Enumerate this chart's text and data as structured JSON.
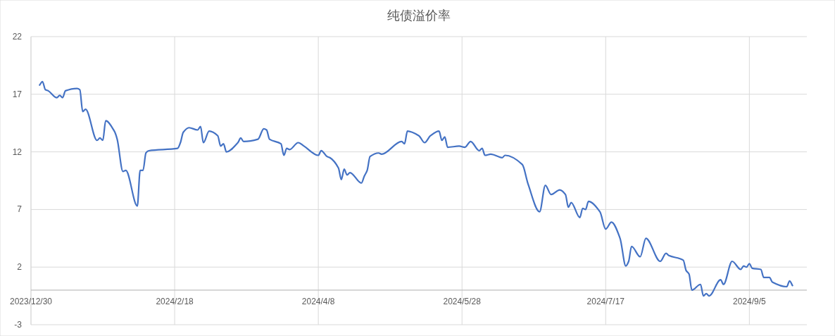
{
  "chart_data": {
    "type": "line",
    "title": "纯债溢价率",
    "xlim": [
      "2023-12-30",
      "2024-09-25"
    ],
    "xticks": [
      {
        "value": "2023-12-30",
        "label": "2023/12/30"
      },
      {
        "value": "2024-02-18",
        "label": "2024/2/18"
      },
      {
        "value": "2024-04-08",
        "label": "2024/4/8"
      },
      {
        "value": "2024-05-28",
        "label": "2024/5/28"
      },
      {
        "value": "2024-07-17",
        "label": "2024/7/17"
      },
      {
        "value": "2024-09-05",
        "label": "2024/9/5"
      }
    ],
    "ylim": [
      -3,
      22
    ],
    "yticks": [
      -3,
      2,
      7,
      12,
      17,
      22
    ],
    "grid": true,
    "series": [
      {
        "color": "#4472c4",
        "x": [
          "2024-01-02",
          "2024-01-03",
          "2024-01-04",
          "2024-01-05",
          "2024-01-08",
          "2024-01-09",
          "2024-01-10",
          "2024-01-11",
          "2024-01-15",
          "2024-01-16",
          "2024-01-17",
          "2024-01-18",
          "2024-01-22",
          "2024-01-23",
          "2024-01-24",
          "2024-01-25",
          "2024-01-28",
          "2024-01-29",
          "2024-01-31",
          "2024-02-01",
          "2024-02-05",
          "2024-02-06",
          "2024-02-07",
          "2024-02-08",
          "2024-02-09",
          "2024-02-19",
          "2024-02-20",
          "2024-02-21",
          "2024-02-23",
          "2024-02-26",
          "2024-02-27",
          "2024-02-28",
          "2024-03-01",
          "2024-03-04",
          "2024-03-05",
          "2024-03-06",
          "2024-03-07",
          "2024-03-11",
          "2024-03-12",
          "2024-03-13",
          "2024-03-18",
          "2024-03-20",
          "2024-03-21",
          "2024-03-22",
          "2024-03-26",
          "2024-03-27",
          "2024-03-28",
          "2024-03-29",
          "2024-04-01",
          "2024-04-03",
          "2024-04-08",
          "2024-04-09",
          "2024-04-11",
          "2024-04-12",
          "2024-04-15",
          "2024-04-16",
          "2024-04-17",
          "2024-04-18",
          "2024-04-19",
          "2024-04-23",
          "2024-04-24",
          "2024-04-25",
          "2024-04-26",
          "2024-04-29",
          "2024-04-30",
          "2024-05-07",
          "2024-05-08",
          "2024-05-09",
          "2024-05-13",
          "2024-05-15",
          "2024-05-17",
          "2024-05-20",
          "2024-05-21",
          "2024-05-22",
          "2024-05-23",
          "2024-05-27",
          "2024-05-29",
          "2024-05-31",
          "2024-06-03",
          "2024-06-04",
          "2024-06-05",
          "2024-06-07",
          "2024-06-11",
          "2024-06-12",
          "2024-06-18",
          "2024-06-20",
          "2024-06-24",
          "2024-06-26",
          "2024-06-28",
          "2024-07-01",
          "2024-07-03",
          "2024-07-04",
          "2024-07-05",
          "2024-07-08",
          "2024-07-09",
          "2024-07-10",
          "2024-07-11",
          "2024-07-15",
          "2024-07-17",
          "2024-07-19",
          "2024-07-22",
          "2024-07-24",
          "2024-07-25",
          "2024-07-26",
          "2024-07-29",
          "2024-07-31",
          "2024-08-05",
          "2024-08-07",
          "2024-08-08",
          "2024-08-13",
          "2024-08-14",
          "2024-08-15",
          "2024-08-16",
          "2024-08-19",
          "2024-08-20",
          "2024-08-21",
          "2024-08-22",
          "2024-08-26",
          "2024-08-27",
          "2024-08-30",
          "2024-09-02",
          "2024-09-03",
          "2024-09-04",
          "2024-09-05",
          "2024-09-06",
          "2024-09-09",
          "2024-09-10",
          "2024-09-12",
          "2024-09-13",
          "2024-09-18",
          "2024-09-19",
          "2024-09-20"
        ],
        "values": [
          17.8,
          18.1,
          17.4,
          17.3,
          16.7,
          16.9,
          16.7,
          17.3,
          17.5,
          17.4,
          15.5,
          15.7,
          13.0,
          13.2,
          13.0,
          14.7,
          13.8,
          13.1,
          10.3,
          10.4,
          7.3,
          10.4,
          10.4,
          11.9,
          12.1,
          12.3,
          12.8,
          13.7,
          14.1,
          13.9,
          14.2,
          12.8,
          13.8,
          13.4,
          12.5,
          12.7,
          12.0,
          12.8,
          13.2,
          12.9,
          13.1,
          14.0,
          13.9,
          13.1,
          12.7,
          11.7,
          12.3,
          12.2,
          12.8,
          12.5,
          11.7,
          12.1,
          11.6,
          11.5,
          10.6,
          9.6,
          10.5,
          10.0,
          10.2,
          9.3,
          9.9,
          10.4,
          11.6,
          11.9,
          11.8,
          12.9,
          12.7,
          13.8,
          13.4,
          12.8,
          13.4,
          13.8,
          13.0,
          13.3,
          12.4,
          12.5,
          12.4,
          12.9,
          12.1,
          12.3,
          11.7,
          11.8,
          11.5,
          11.7,
          10.9,
          9.2,
          6.8,
          9.1,
          8.3,
          8.7,
          8.3,
          7.2,
          7.6,
          6.3,
          7.1,
          7.0,
          7.7,
          6.8,
          5.3,
          5.9,
          4.5,
          2.1,
          2.5,
          3.8,
          2.9,
          4.5,
          2.5,
          3.2,
          3.0,
          2.6,
          1.7,
          1.4,
          0.0,
          0.5,
          -0.5,
          -0.3,
          -0.5,
          0.9,
          0.5,
          2.5,
          1.8,
          2.1,
          2.0,
          2.3,
          1.9,
          1.8,
          1.1,
          1.1,
          0.7,
          0.3,
          0.8,
          0.4
        ]
      }
    ]
  }
}
